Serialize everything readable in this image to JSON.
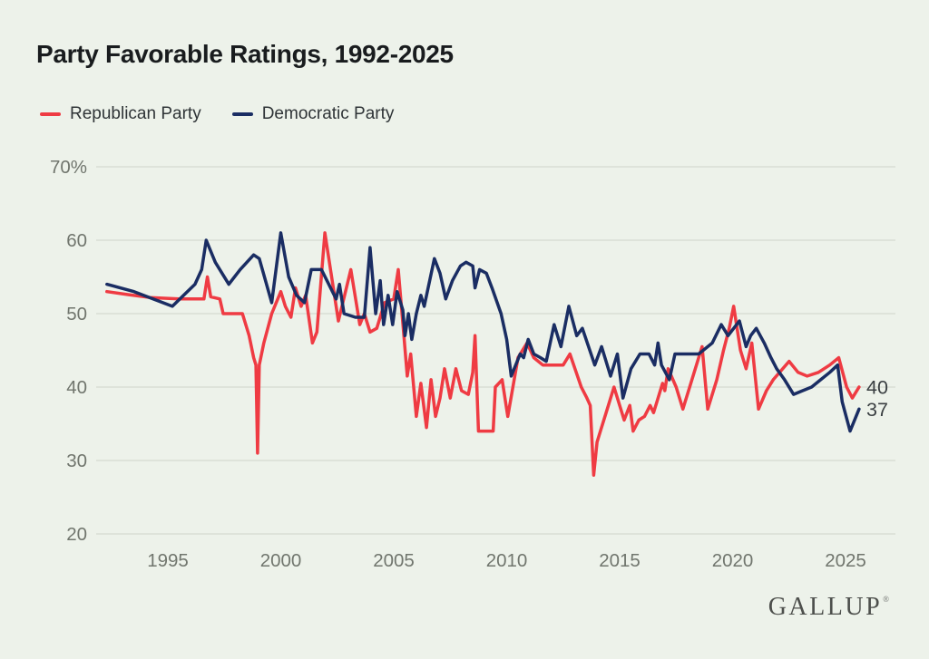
{
  "title": "Party Favorable Ratings, 1992-2025",
  "legend": [
    {
      "label": "Republican Party",
      "color": "#ef3b43"
    },
    {
      "label": "Democratic Party",
      "color": "#1a2d63"
    }
  ],
  "branding": {
    "logo": "GALLUP",
    "registered": "®"
  },
  "colors": {
    "background": "#edf2ea",
    "gridline": "#d9ded5",
    "axis_text": "#71766e",
    "title_text": "#191c1e",
    "end_label_text": "#3a3f42",
    "republican": "#ef3b43",
    "democratic": "#1a2d63"
  },
  "chart_data": {
    "type": "line",
    "title": "Party Favorable Ratings, 1992-2025",
    "unit": "%",
    "grid": true,
    "legend_position": "top-left",
    "x_axis": {
      "range": [
        1992,
        2026
      ],
      "ticks": [
        1995,
        2000,
        2005,
        2010,
        2015,
        2020,
        2025
      ]
    },
    "y_axis": {
      "range": [
        20,
        70
      ],
      "ticks": [
        {
          "value": 70,
          "label": "70%"
        },
        {
          "value": 60,
          "label": "60"
        },
        {
          "value": 50,
          "label": "50"
        },
        {
          "value": 40,
          "label": "40"
        },
        {
          "value": 30,
          "label": "30"
        },
        {
          "value": 20,
          "label": "20"
        }
      ]
    },
    "series": [
      {
        "name": "Republican Party",
        "color": "#ef3b43",
        "end_label": "40",
        "points": [
          [
            1992.3,
            53
          ],
          [
            1993.2,
            52.6
          ],
          [
            1994.2,
            52.2
          ],
          [
            1995.5,
            52
          ],
          [
            1996.6,
            52
          ],
          [
            1996.75,
            55
          ],
          [
            1996.9,
            52.3
          ],
          [
            1997.3,
            52
          ],
          [
            1997.45,
            50
          ],
          [
            1998.3,
            50
          ],
          [
            1998.6,
            47
          ],
          [
            1998.8,
            44
          ],
          [
            1998.9,
            43
          ],
          [
            1998.97,
            31
          ],
          [
            1999.05,
            43
          ],
          [
            1999.25,
            46
          ],
          [
            1999.6,
            50
          ],
          [
            2000.0,
            53
          ],
          [
            2000.2,
            51
          ],
          [
            2000.45,
            49.5
          ],
          [
            2000.65,
            53.5
          ],
          [
            2000.9,
            51
          ],
          [
            2001.1,
            52.5
          ],
          [
            2001.4,
            46
          ],
          [
            2001.6,
            47.5
          ],
          [
            2001.95,
            61
          ],
          [
            2002.3,
            54
          ],
          [
            2002.55,
            49
          ],
          [
            2003.1,
            56
          ],
          [
            2003.5,
            48.5
          ],
          [
            2003.7,
            50
          ],
          [
            2003.95,
            47.5
          ],
          [
            2004.25,
            48
          ],
          [
            2004.6,
            51.5
          ],
          [
            2005.0,
            52
          ],
          [
            2005.2,
            56
          ],
          [
            2005.45,
            47
          ],
          [
            2005.6,
            41.5
          ],
          [
            2005.75,
            44.5
          ],
          [
            2006.0,
            36
          ],
          [
            2006.2,
            40.5
          ],
          [
            2006.45,
            34.5
          ],
          [
            2006.65,
            41
          ],
          [
            2006.85,
            36
          ],
          [
            2007.05,
            38.5
          ],
          [
            2007.25,
            42.5
          ],
          [
            2007.5,
            38.5
          ],
          [
            2007.75,
            42.5
          ],
          [
            2008.0,
            39.5
          ],
          [
            2008.3,
            39
          ],
          [
            2008.5,
            42
          ],
          [
            2008.6,
            47
          ],
          [
            2008.75,
            34
          ],
          [
            2009.4,
            34
          ],
          [
            2009.5,
            40
          ],
          [
            2009.8,
            41
          ],
          [
            2010.05,
            36
          ],
          [
            2010.5,
            44
          ],
          [
            2010.9,
            46
          ],
          [
            2011.2,
            44
          ],
          [
            2011.6,
            43
          ],
          [
            2012.1,
            43
          ],
          [
            2012.5,
            43
          ],
          [
            2012.8,
            44.5
          ],
          [
            2013.3,
            40
          ],
          [
            2013.55,
            38.5
          ],
          [
            2013.7,
            37.5
          ],
          [
            2013.85,
            28
          ],
          [
            2014.0,
            32.5
          ],
          [
            2014.15,
            34
          ],
          [
            2014.4,
            36.5
          ],
          [
            2014.75,
            40
          ],
          [
            2015.2,
            35.5
          ],
          [
            2015.45,
            37.5
          ],
          [
            2015.6,
            34
          ],
          [
            2015.85,
            35.5
          ],
          [
            2016.1,
            36
          ],
          [
            2016.35,
            37.5
          ],
          [
            2016.5,
            36.5
          ],
          [
            2016.65,
            38
          ],
          [
            2016.9,
            40.5
          ],
          [
            2017.0,
            39.5
          ],
          [
            2017.15,
            42.5
          ],
          [
            2017.5,
            40
          ],
          [
            2017.8,
            37
          ],
          [
            2018.1,
            40
          ],
          [
            2018.65,
            45.5
          ],
          [
            2018.9,
            37
          ],
          [
            2019.3,
            41
          ],
          [
            2019.6,
            45
          ],
          [
            2019.85,
            48
          ],
          [
            2020.05,
            51
          ],
          [
            2020.35,
            45
          ],
          [
            2020.6,
            42.5
          ],
          [
            2020.85,
            46
          ],
          [
            2021.15,
            37
          ],
          [
            2021.5,
            39.5
          ],
          [
            2021.8,
            41
          ],
          [
            2022.5,
            43.5
          ],
          [
            2022.9,
            42
          ],
          [
            2023.3,
            41.5
          ],
          [
            2023.8,
            42
          ],
          [
            2024.3,
            43
          ],
          [
            2024.7,
            44
          ],
          [
            2025.05,
            40
          ],
          [
            2025.3,
            38.5
          ],
          [
            2025.6,
            40
          ]
        ]
      },
      {
        "name": "Democratic Party",
        "color": "#1a2d63",
        "end_label": "37",
        "points": [
          [
            1992.3,
            54
          ],
          [
            1993.5,
            53
          ],
          [
            1995.2,
            51
          ],
          [
            1995.7,
            52.5
          ],
          [
            1996.2,
            54
          ],
          [
            1996.5,
            56
          ],
          [
            1996.7,
            60
          ],
          [
            1997.1,
            57
          ],
          [
            1997.7,
            54
          ],
          [
            1998.2,
            56
          ],
          [
            1998.8,
            58
          ],
          [
            1999.05,
            57.5
          ],
          [
            1999.6,
            51.5
          ],
          [
            2000.0,
            61
          ],
          [
            2000.35,
            55
          ],
          [
            2000.7,
            52.5
          ],
          [
            2001.05,
            51.5
          ],
          [
            2001.35,
            56
          ],
          [
            2001.8,
            56
          ],
          [
            2002.45,
            52
          ],
          [
            2002.6,
            54
          ],
          [
            2002.8,
            50
          ],
          [
            2003.3,
            49.5
          ],
          [
            2003.7,
            49.5
          ],
          [
            2003.95,
            59
          ],
          [
            2004.2,
            50
          ],
          [
            2004.4,
            54.5
          ],
          [
            2004.55,
            48.5
          ],
          [
            2004.75,
            52.5
          ],
          [
            2004.95,
            48.5
          ],
          [
            2005.15,
            53
          ],
          [
            2005.4,
            50.5
          ],
          [
            2005.5,
            47
          ],
          [
            2005.65,
            50
          ],
          [
            2005.8,
            46.5
          ],
          [
            2006.0,
            50
          ],
          [
            2006.2,
            52.5
          ],
          [
            2006.35,
            51
          ],
          [
            2006.8,
            57.5
          ],
          [
            2007.05,
            55.5
          ],
          [
            2007.3,
            52
          ],
          [
            2007.6,
            54.5
          ],
          [
            2007.95,
            56.5
          ],
          [
            2008.2,
            57
          ],
          [
            2008.5,
            56.5
          ],
          [
            2008.6,
            53.5
          ],
          [
            2008.8,
            56
          ],
          [
            2009.1,
            55.5
          ],
          [
            2009.35,
            53.5
          ],
          [
            2009.75,
            50
          ],
          [
            2010.0,
            46.5
          ],
          [
            2010.2,
            41.5
          ],
          [
            2010.6,
            44.5
          ],
          [
            2010.75,
            44
          ],
          [
            2010.95,
            46.5
          ],
          [
            2011.2,
            44.5
          ],
          [
            2011.5,
            44
          ],
          [
            2011.75,
            43.5
          ],
          [
            2012.1,
            48.5
          ],
          [
            2012.4,
            45.5
          ],
          [
            2012.75,
            51
          ],
          [
            2013.1,
            47
          ],
          [
            2013.35,
            48
          ],
          [
            2013.9,
            43
          ],
          [
            2014.2,
            45.5
          ],
          [
            2014.6,
            41.5
          ],
          [
            2014.9,
            44.5
          ],
          [
            2015.15,
            38.5
          ],
          [
            2015.5,
            42.5
          ],
          [
            2015.9,
            44.5
          ],
          [
            2016.3,
            44.5
          ],
          [
            2016.55,
            43
          ],
          [
            2016.7,
            46
          ],
          [
            2016.85,
            43
          ],
          [
            2017.2,
            41
          ],
          [
            2017.45,
            44.5
          ],
          [
            2018.5,
            44.5
          ],
          [
            2019.1,
            46
          ],
          [
            2019.5,
            48.5
          ],
          [
            2019.8,
            47
          ],
          [
            2020.3,
            49
          ],
          [
            2020.6,
            45.5
          ],
          [
            2020.8,
            47
          ],
          [
            2021.05,
            48
          ],
          [
            2021.4,
            46
          ],
          [
            2021.7,
            44
          ],
          [
            2021.95,
            42.5
          ],
          [
            2022.3,
            41
          ],
          [
            2022.7,
            39
          ],
          [
            2023.1,
            39.5
          ],
          [
            2023.5,
            40
          ],
          [
            2023.9,
            41
          ],
          [
            2024.3,
            42
          ],
          [
            2024.65,
            43
          ],
          [
            2024.85,
            38
          ],
          [
            2025.2,
            34
          ],
          [
            2025.6,
            37
          ]
        ]
      }
    ]
  }
}
